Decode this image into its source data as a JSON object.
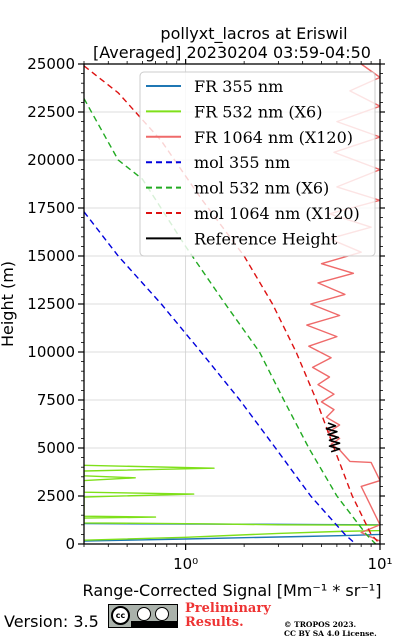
{
  "chart_data": {
    "type": "line",
    "title_line1": "pollyxt_lacros at Eriswil",
    "title_line2": "[Averaged] 20230204 03:59-04:50",
    "xlabel": "Range-Corrected Signal [Mm⁻¹ * sr⁻¹]",
    "ylabel": "Height (m)",
    "xscale": "log",
    "xlim": [
      0.3,
      10
    ],
    "ylim": [
      0,
      25000
    ],
    "grid": true,
    "legend_position": "top-right",
    "x_ticks": [
      {
        "value": 1,
        "label": "10⁰"
      },
      {
        "value": 10,
        "label": "10¹"
      }
    ],
    "y_ticks": [
      {
        "value": 0,
        "label": "0"
      },
      {
        "value": 2500,
        "label": "2500"
      },
      {
        "value": 5000,
        "label": "5000"
      },
      {
        "value": 7500,
        "label": "7500"
      },
      {
        "value": 10000,
        "label": "10000"
      },
      {
        "value": 12500,
        "label": "12500"
      },
      {
        "value": 15000,
        "label": "15000"
      },
      {
        "value": 17500,
        "label": "17500"
      },
      {
        "value": 20000,
        "label": "20000"
      },
      {
        "value": 22500,
        "label": "22500"
      },
      {
        "value": 25000,
        "label": "25000"
      }
    ],
    "series": [
      {
        "name": "FR 355 nm",
        "color": "#1f77b4",
        "dash": "solid",
        "points": [
          [
            0.3,
            150
          ],
          [
            0.5,
            200
          ],
          [
            1,
            260
          ],
          [
            2,
            330
          ],
          [
            4,
            390
          ],
          [
            7,
            450
          ],
          [
            10,
            500
          ],
          [
            10,
            1000
          ],
          [
            5,
            1010
          ],
          [
            2,
            1030
          ],
          [
            1,
            1040
          ],
          [
            0.5,
            1050
          ],
          [
            0.3,
            1060
          ]
        ]
      },
      {
        "name": "FR 532 nm (X6)",
        "color": "#7fe01a",
        "dash": "solid",
        "points": [
          [
            0.3,
            200
          ],
          [
            1,
            350
          ],
          [
            3,
            550
          ],
          [
            6,
            650
          ],
          [
            10,
            700
          ],
          [
            10,
            980
          ],
          [
            3,
            1000
          ],
          [
            1.2,
            1050
          ],
          [
            0.3,
            1100
          ],
          [
            0.3,
            1350
          ],
          [
            0.7,
            1400
          ],
          [
            0.3,
            1450
          ],
          [
            0.3,
            2450
          ],
          [
            1.1,
            2600
          ],
          [
            0.3,
            2700
          ],
          [
            0.3,
            3300
          ],
          [
            0.55,
            3450
          ],
          [
            0.3,
            3550
          ],
          [
            0.3,
            3800
          ],
          [
            1.4,
            3950
          ],
          [
            0.3,
            4100
          ]
        ]
      },
      {
        "name": "FR 1064 nm (X120)",
        "color": "#ef6a6a",
        "dash": "solid",
        "points": [
          [
            10,
            150
          ],
          [
            8,
            600
          ],
          [
            10,
            1000
          ],
          [
            8,
            3000
          ],
          [
            10,
            3300
          ],
          [
            9,
            4250
          ],
          [
            7,
            4300
          ],
          [
            6.2,
            4900
          ],
          [
            5.6,
            5200
          ],
          [
            6.2,
            5500
          ],
          [
            5.4,
            5800
          ],
          [
            6.2,
            6200
          ],
          [
            5.3,
            6600
          ],
          [
            5.8,
            7000
          ],
          [
            5.0,
            7400
          ],
          [
            5.8,
            7800
          ],
          [
            4.8,
            8300
          ],
          [
            5.5,
            8700
          ],
          [
            4.5,
            9200
          ],
          [
            5.6,
            9700
          ],
          [
            4.3,
            10300
          ],
          [
            6.0,
            10800
          ],
          [
            4.2,
            11400
          ],
          [
            6.2,
            11900
          ],
          [
            4.4,
            12500
          ],
          [
            6.6,
            13000
          ],
          [
            4.8,
            13600
          ],
          [
            7.3,
            14100
          ],
          [
            5.0,
            14600
          ],
          [
            8.0,
            15200
          ],
          [
            5.5,
            15900
          ],
          [
            9.0,
            16500
          ],
          [
            5.5,
            17200
          ],
          [
            10,
            17900
          ],
          [
            6.0,
            18600
          ],
          [
            10,
            19500
          ],
          [
            5.8,
            20400
          ],
          [
            10,
            21200
          ],
          [
            6.0,
            22000
          ],
          [
            10,
            22800
          ],
          [
            7.0,
            23600
          ],
          [
            10,
            24300
          ],
          [
            8.0,
            25000
          ]
        ]
      },
      {
        "name": "mol 355 nm",
        "color": "#0000dd",
        "dash": "6,4",
        "points": [
          [
            0.3,
            17300
          ],
          [
            0.45,
            15000
          ],
          [
            0.75,
            12500
          ],
          [
            1.2,
            10000
          ],
          [
            1.9,
            7500
          ],
          [
            2.9,
            5000
          ],
          [
            4.4,
            2500
          ],
          [
            6.6,
            500
          ],
          [
            7.5,
            0
          ]
        ]
      },
      {
        "name": "mol 532 nm (X6)",
        "color": "#22aa22",
        "dash": "6,4",
        "points": [
          [
            0.3,
            23200
          ],
          [
            0.45,
            20000
          ],
          [
            0.6,
            19000
          ],
          [
            1.0,
            15500
          ],
          [
            1.6,
            12500
          ],
          [
            2.4,
            10000
          ],
          [
            3.2,
            7500
          ],
          [
            4.3,
            5000
          ],
          [
            6.0,
            2500
          ],
          [
            8.5,
            500
          ],
          [
            9.5,
            0
          ]
        ]
      },
      {
        "name": "mol 1064 nm (X120)",
        "color": "#dd1111",
        "dash": "6,4",
        "points": [
          [
            0.3,
            24900
          ],
          [
            0.45,
            23500
          ],
          [
            0.75,
            21000
          ],
          [
            1.2,
            18000
          ],
          [
            2.0,
            15000
          ],
          [
            2.8,
            12500
          ],
          [
            3.7,
            10000
          ],
          [
            4.7,
            7500
          ],
          [
            5.8,
            5000
          ],
          [
            7.2,
            2500
          ],
          [
            9.0,
            500
          ],
          [
            10,
            0
          ]
        ]
      },
      {
        "name": "Reference Height",
        "color": "#000000",
        "dash": "solid",
        "points": [
          [
            5.4,
            6300
          ],
          [
            5.9,
            6150
          ],
          [
            5.3,
            6000
          ],
          [
            6.0,
            5850
          ],
          [
            5.4,
            5700
          ],
          [
            6.1,
            5550
          ],
          [
            5.5,
            5400
          ],
          [
            6.2,
            5250
          ],
          [
            5.5,
            5100
          ],
          [
            6.2,
            4950
          ],
          [
            5.6,
            4800
          ]
        ]
      }
    ]
  },
  "footer": {
    "version": "Version: 3.5",
    "license_badge": "cc-by-sa-icon",
    "license_badge_text": "BY SA",
    "preliminary_line1": "Preliminary",
    "preliminary_line2": "Results.",
    "copyright_line1": "© TROPOS 2023.",
    "copyright_line2": "CC BY SA 4.0 License."
  }
}
